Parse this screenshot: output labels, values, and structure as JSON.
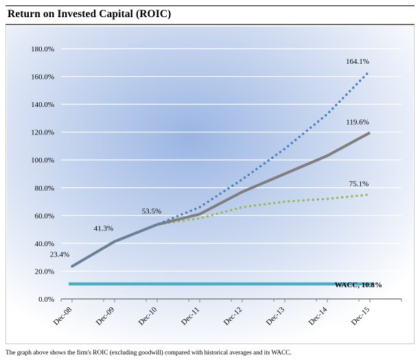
{
  "header": {
    "title": "Return on Invested Capital (ROIC)"
  },
  "caption": "The graph above shows the firm's ROIC (excluding goodwill) compared with historical averages and its WACC.",
  "chart_data": {
    "type": "line",
    "title": "",
    "xlabel": "",
    "ylabel": "",
    "categories": [
      "Dec-08",
      "Dec-09",
      "Dec-10",
      "Dec-11",
      "Dec-12",
      "Dec-13",
      "Dec-14",
      "Dec-15"
    ],
    "y_ticks": [
      "0.0%",
      "20.0%",
      "40.0%",
      "60.0%",
      "80.0%",
      "100.0%",
      "120.0%",
      "140.0%",
      "160.0%",
      "180.0%"
    ],
    "ylim": [
      0,
      180
    ],
    "grid": true,
    "legend": "none",
    "series": [
      {
        "style": "dotted",
        "color": "#4f81bd",
        "values": [
          23.4,
          41.3,
          53.5,
          66,
          86,
          108,
          133,
          164.1
        ]
      },
      {
        "style": "solid",
        "color": "#7f7f7f",
        "values": [
          23.4,
          41.3,
          53.5,
          61,
          77,
          90,
          103,
          119.6
        ]
      },
      {
        "style": "dotted",
        "color": "#9bbb59",
        "values": [
          23.4,
          41.3,
          53.5,
          58,
          66,
          70,
          72,
          75.1
        ]
      },
      {
        "style": "solid",
        "color": "#4bacc6",
        "values": [
          10.8,
          10.8,
          10.8,
          10.8,
          10.8,
          10.8,
          10.8,
          10.8
        ]
      }
    ],
    "annotations": [
      {
        "text": "23.4%",
        "x": "Dec-08",
        "y": 23.4
      },
      {
        "text": "41.3%",
        "x": "Dec-09",
        "y": 41.3
      },
      {
        "text": "53.5%",
        "x": "Dec-10",
        "y": 53.5
      },
      {
        "text": "164.1%",
        "x": "Dec-15",
        "y": 164.1
      },
      {
        "text": "119.6%",
        "x": "Dec-15",
        "y": 119.6
      },
      {
        "text": "75.1%",
        "x": "Dec-15",
        "y": 75.1
      },
      {
        "text": "WACC, 10.8%",
        "x": "Dec-15",
        "y": 10.8
      }
    ]
  }
}
